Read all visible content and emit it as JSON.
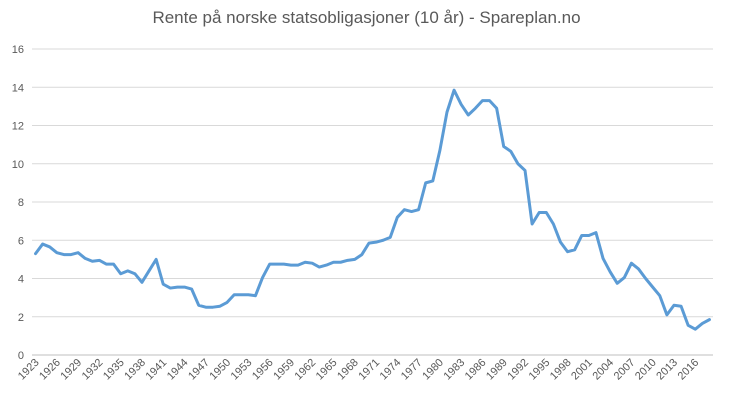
{
  "chart_data": {
    "type": "line",
    "title": "Rente på norske statsobligasjoner (10 år) - Spareplan.no",
    "xlabel": "",
    "ylabel": "",
    "ylim": [
      0,
      16
    ],
    "y_ticks": [
      "0",
      "2",
      "4",
      "6",
      "8",
      "10",
      "12",
      "14",
      "16"
    ],
    "x_ticks": [
      "1923",
      "1926",
      "1929",
      "1932",
      "1935",
      "1938",
      "1941",
      "1944",
      "1947",
      "1950",
      "1953",
      "1956",
      "1959",
      "1962",
      "1965",
      "1968",
      "1971",
      "1974",
      "1977",
      "1980",
      "1983",
      "1986",
      "1989",
      "1992",
      "1995",
      "1998",
      "2001",
      "2004",
      "2007",
      "2010",
      "2013",
      "2016"
    ],
    "grid": true,
    "legend": "none",
    "line_color": "#5B9BD5",
    "series": [
      {
        "x": [
          1923,
          1924,
          1925,
          1926,
          1927,
          1928,
          1929,
          1930,
          1931,
          1932,
          1933,
          1934,
          1935,
          1936,
          1937,
          1938,
          1939,
          1940,
          1941,
          1942,
          1943,
          1944,
          1945,
          1946,
          1947,
          1948,
          1949,
          1950,
          1951,
          1952,
          1953,
          1954,
          1955,
          1956,
          1957,
          1958,
          1959,
          1960,
          1961,
          1962,
          1963,
          1964,
          1965,
          1966,
          1967,
          1968,
          1969,
          1970,
          1971,
          1972,
          1973,
          1974,
          1975,
          1976,
          1977,
          1978,
          1979,
          1980,
          1981,
          1982,
          1983,
          1984,
          1985,
          1986,
          1987,
          1988,
          1989,
          1990,
          1991,
          1992,
          1993,
          1994,
          1995,
          1996,
          1997,
          1998,
          1999,
          2000,
          2001,
          2002,
          2003,
          2004,
          2005,
          2006,
          2007,
          2008,
          2009,
          2010,
          2011,
          2012,
          2013,
          2014,
          2015,
          2016,
          2017,
          2018
        ],
        "values": [
          5.3,
          5.8,
          5.65,
          5.35,
          5.25,
          5.25,
          5.35,
          5.05,
          4.9,
          4.95,
          4.75,
          4.75,
          4.25,
          4.4,
          4.25,
          3.8,
          4.4,
          5.0,
          3.7,
          3.5,
          3.55,
          3.55,
          3.45,
          2.6,
          2.5,
          2.5,
          2.55,
          2.75,
          3.15,
          3.15,
          3.15,
          3.1,
          4.05,
          4.75,
          4.75,
          4.75,
          4.7,
          4.7,
          4.85,
          4.8,
          4.6,
          4.7,
          4.85,
          4.85,
          4.95,
          5.0,
          5.25,
          5.85,
          5.9,
          6.0,
          6.15,
          7.2,
          7.6,
          7.5,
          7.6,
          9.0,
          9.1,
          10.7,
          12.7,
          13.85,
          13.1,
          12.55,
          12.9,
          13.3,
          13.3,
          12.9,
          10.9,
          10.65,
          10.0,
          9.65,
          6.85,
          7.45,
          7.45,
          6.85,
          5.9,
          5.4,
          5.5,
          6.25,
          6.25,
          6.4,
          5.05,
          4.35,
          3.75,
          4.05,
          4.8,
          4.5,
          4.0,
          3.55,
          3.1,
          2.1,
          2.6,
          2.55,
          1.55,
          1.35,
          1.65,
          1.85
        ]
      }
    ]
  }
}
